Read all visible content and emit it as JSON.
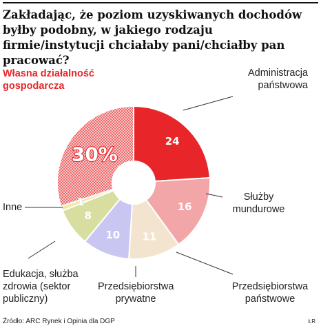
{
  "title": "Zakładając, że poziom uzyskiwanych dochodów byłby podobny, w jakiego rodzaju firmie/instytucji chciałaby pani/chciałby pan pracować?",
  "source": "Źródło: ARC Rynek i Opinia dla DGP",
  "author": "ŁR",
  "chart_data": {
    "type": "pie",
    "unit": "%",
    "slices": [
      {
        "label": "Administracja państwowa",
        "value": 24,
        "display": "24",
        "color": "#e8262a"
      },
      {
        "label": "Służby mundurowe",
        "value": 16,
        "display": "16",
        "color": "#f2a6a8"
      },
      {
        "label": "Przedsiębiorstwa państwowe",
        "value": 11,
        "display": "11",
        "color": "#f3e4cf"
      },
      {
        "label": "Przedsiębiorstwa prywatne",
        "value": 10,
        "display": "10",
        "color": "#c9c6f2"
      },
      {
        "label": "Edukacja, służba zdrowia (sektor publiczny)",
        "value": 8,
        "display": "8",
        "color": "#d7dea0"
      },
      {
        "label": "Inne",
        "value": 1,
        "display": "1",
        "color": "#f2e8a8"
      },
      {
        "label": "Własna działalność gospodarcza",
        "value": 30,
        "display": "30%",
        "color": "#e8262a",
        "pattern": "dots",
        "highlight": true
      }
    ]
  }
}
